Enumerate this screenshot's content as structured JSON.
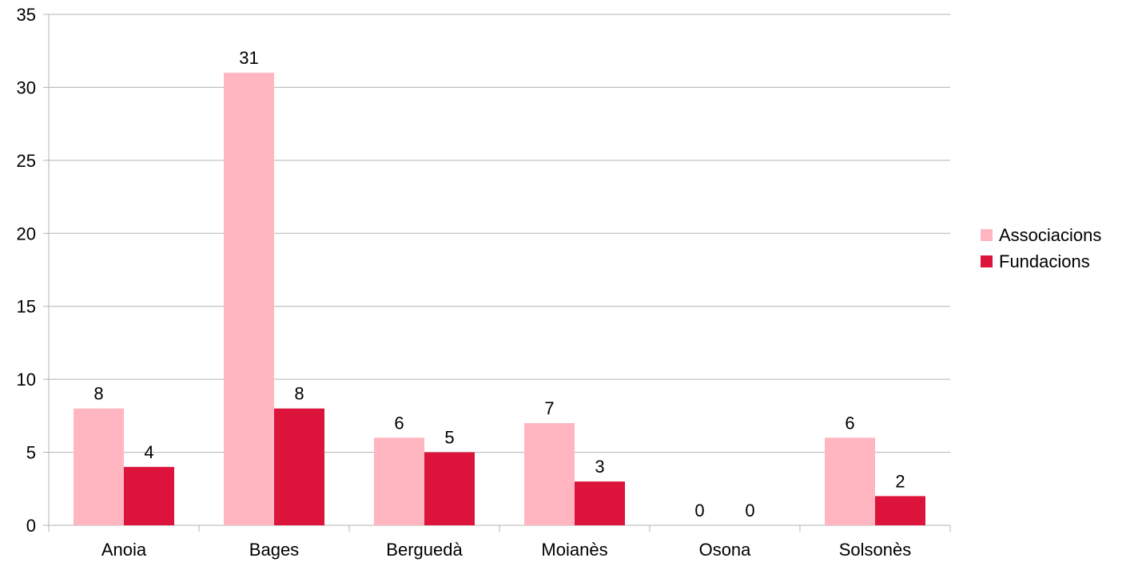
{
  "chart_data": {
    "type": "bar",
    "title": "",
    "xlabel": "",
    "ylabel": "",
    "categories": [
      "Anoia",
      "Bages",
      "Berguedà",
      "Moianès",
      "Osona",
      "Solsonès"
    ],
    "series": [
      {
        "name": "Associacions",
        "values": [
          8,
          31,
          6,
          7,
          0,
          6
        ],
        "color": "#ffb6c1"
      },
      {
        "name": "Fundacions",
        "values": [
          4,
          8,
          5,
          3,
          0,
          2
        ],
        "color": "#dc143c"
      }
    ],
    "ylim": [
      0,
      35
    ],
    "yticks": [
      0,
      5,
      10,
      15,
      20,
      25,
      30,
      35
    ],
    "grid": true,
    "gridColor": "#b3b3b3",
    "data_labels": true,
    "legend_position": "right"
  }
}
